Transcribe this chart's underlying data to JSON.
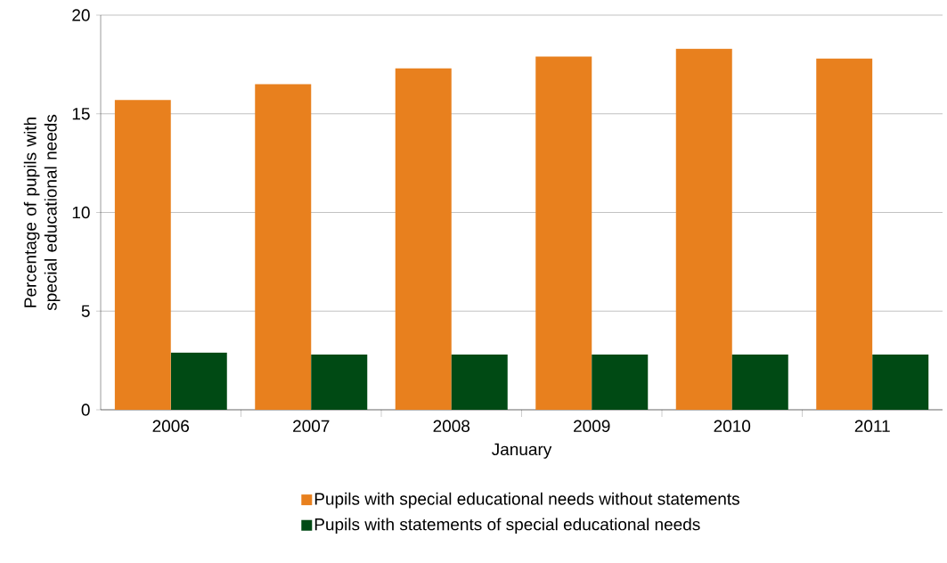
{
  "chart_data": {
    "type": "bar",
    "xlabel": "January",
    "ylabel": "Percentage of pupils with special educational needs",
    "categories": [
      "2006",
      "2007",
      "2008",
      "2009",
      "2010",
      "2011"
    ],
    "series": [
      {
        "name": "Pupils with special educational needs without statements",
        "color": "#e8801e",
        "values": [
          15.7,
          16.5,
          17.3,
          17.9,
          18.3,
          17.8
        ]
      },
      {
        "name": "Pupils with statements of special educational needs",
        "color": "#004a14",
        "values": [
          2.9,
          2.8,
          2.8,
          2.8,
          2.8,
          2.8
        ]
      }
    ],
    "ylim": [
      0,
      20
    ],
    "yticks": [
      0,
      5,
      10,
      15,
      20
    ],
    "grid": "y",
    "legend": "bottom"
  }
}
